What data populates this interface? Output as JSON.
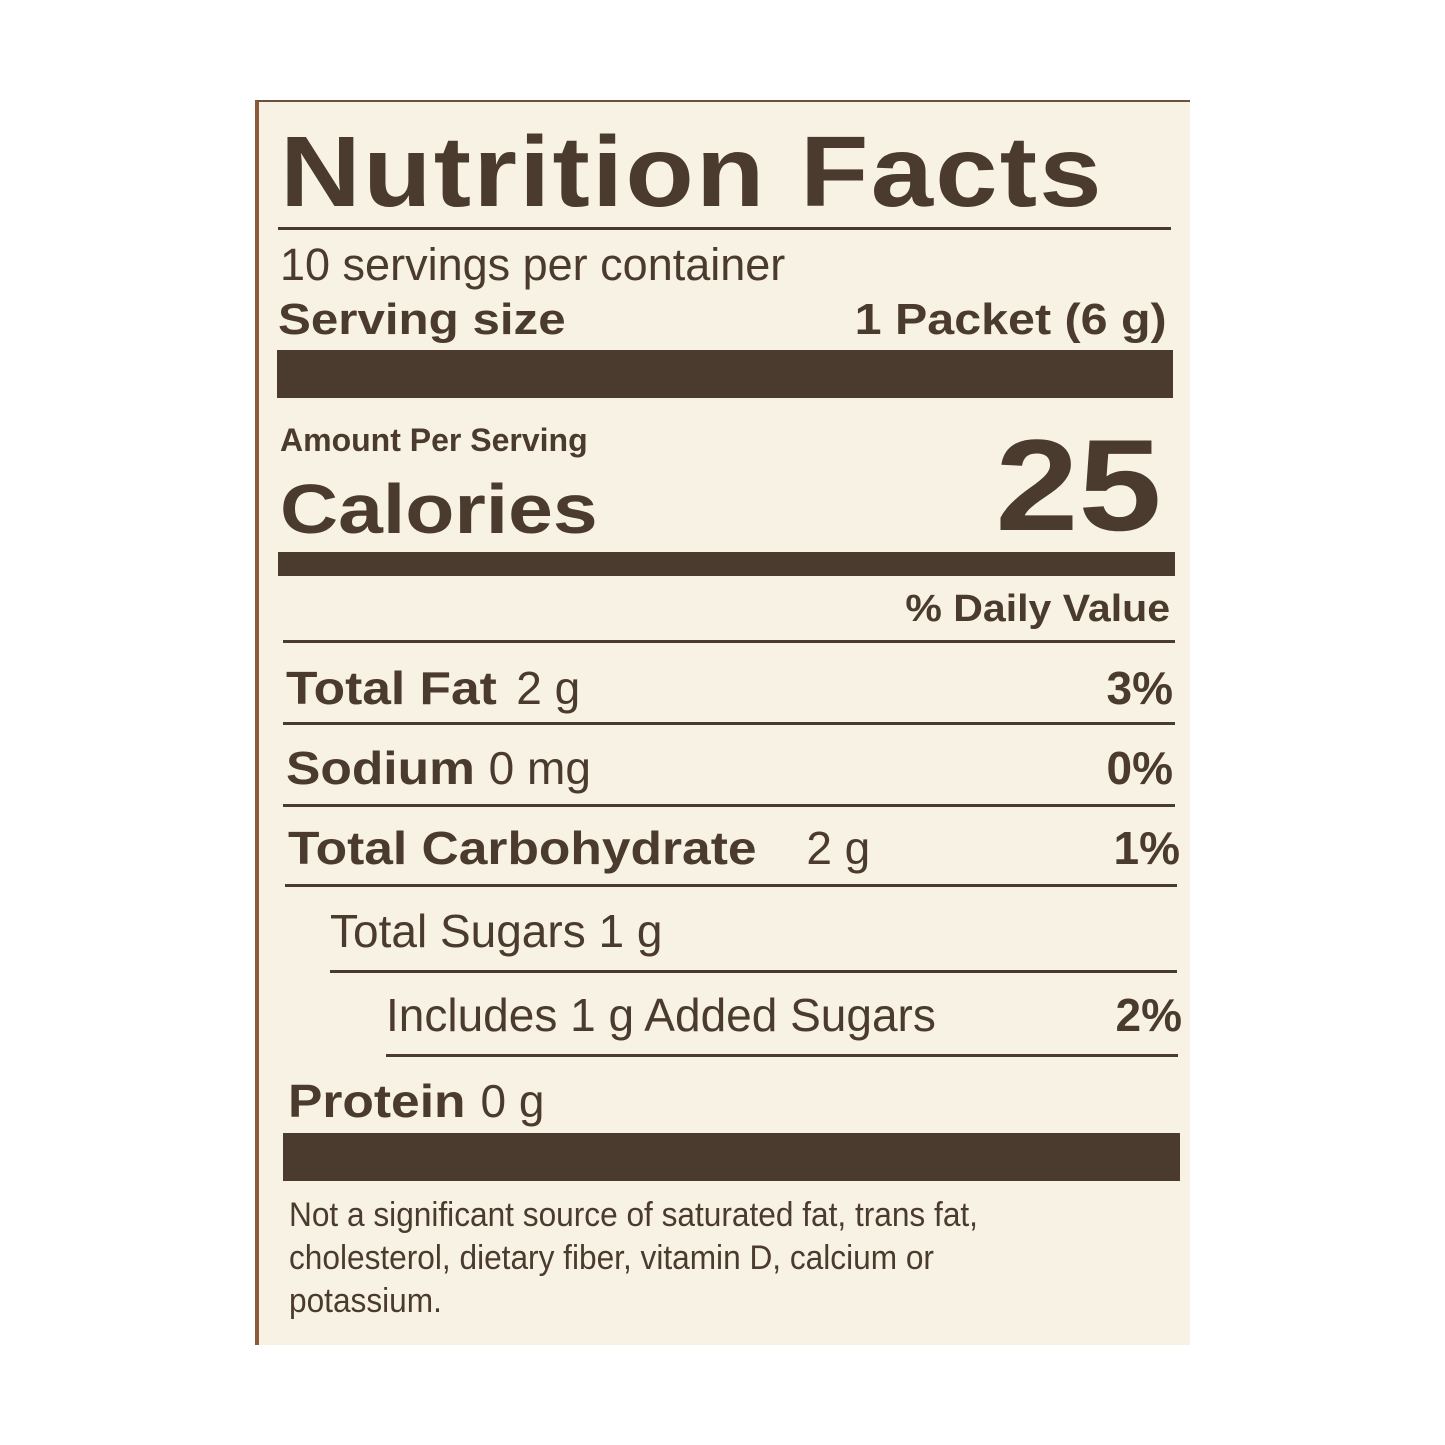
{
  "title": "Nutrition Facts",
  "servings_per_container": "10 servings per container",
  "serving_size": {
    "label": "Serving size",
    "value": "1 Packet (6 g)"
  },
  "amount_per_serving": "Amount Per Serving",
  "calories": {
    "label": "Calories",
    "value": "25"
  },
  "daily_value_header": "% Daily Value",
  "nutrients": [
    {
      "name": "Total Fat",
      "amount": "2 g",
      "dv": "3%"
    },
    {
      "name": "Sodium",
      "amount": "0 mg",
      "dv": "0%"
    },
    {
      "name": "Total Carbohydrate",
      "amount": "2 g",
      "dv": "1%"
    },
    {
      "name": "Total Sugars 1 g"
    },
    {
      "name": "Includes 1 g Added Sugars",
      "dv": "2%"
    },
    {
      "name": "Protein",
      "amount": "0 g"
    }
  ],
  "footnote": [
    "Not a significant source of saturated fat, trans fat,",
    "cholesterol, dietary fiber, vitamin D, calcium or",
    "potassium."
  ],
  "colors": {
    "ink": "#4b3b2f",
    "paper": "#f7f2e3",
    "edge": "#8a5a3a"
  }
}
